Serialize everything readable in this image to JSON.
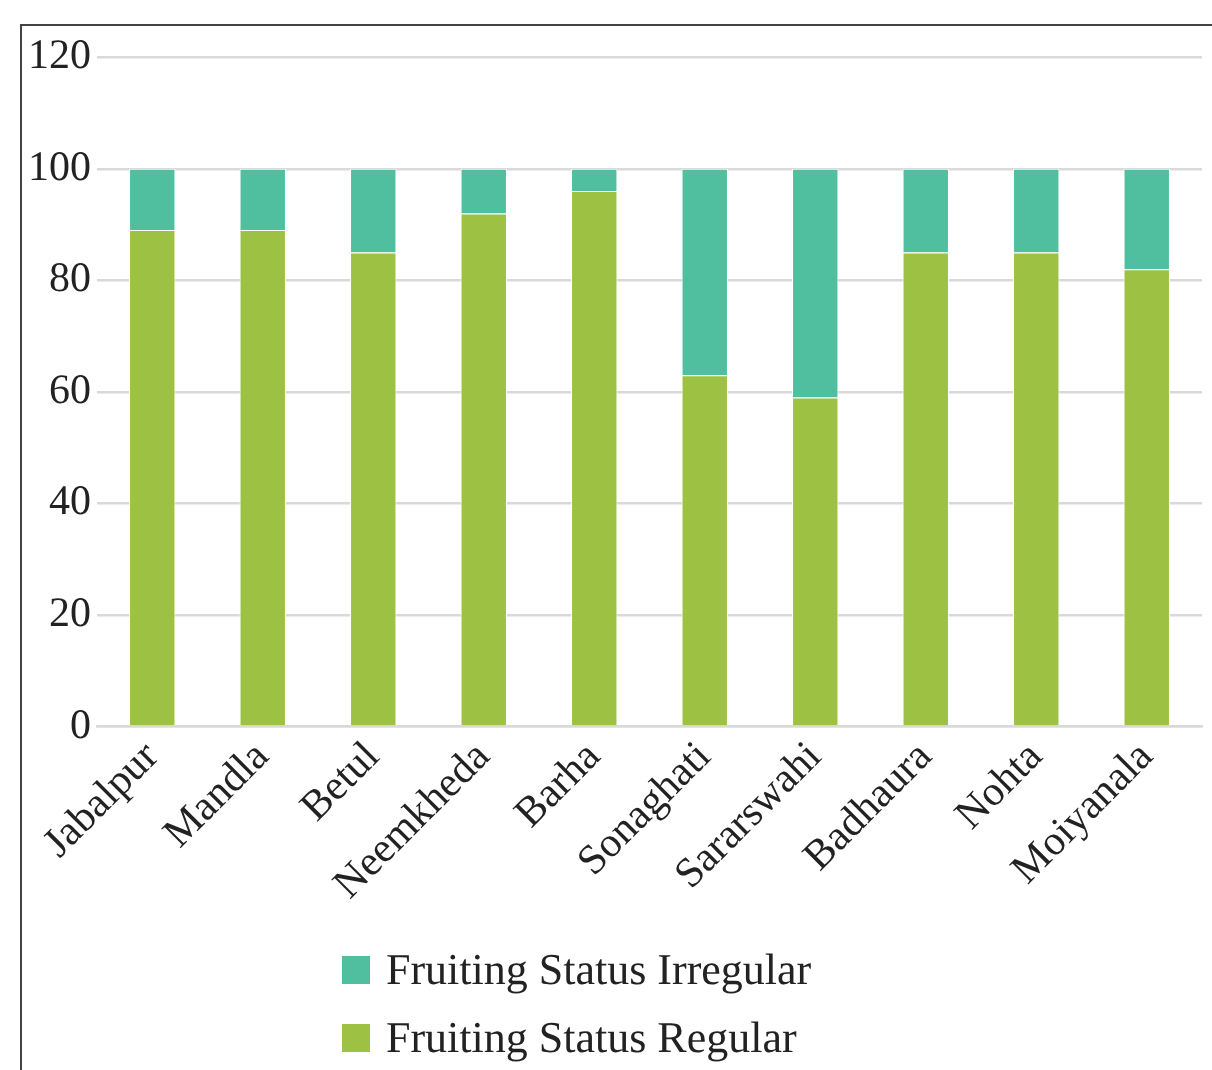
{
  "chart_data": {
    "type": "bar",
    "stacked": true,
    "categories": [
      "Jabalpur",
      "Mandla",
      "Betul",
      "Neemkheda",
      "Barha",
      "Sonaghati",
      "Sararswahi",
      "Badhaura",
      "Nohta",
      "Moiyanala"
    ],
    "series": [
      {
        "name": "Fruiting Status Regular",
        "color": "#9dc243",
        "values": [
          89,
          89,
          85,
          92,
          96,
          63,
          59,
          85,
          85,
          82
        ]
      },
      {
        "name": "Fruiting Status Irregular",
        "color": "#4fbfa0",
        "values": [
          11,
          11,
          15,
          8,
          4,
          37,
          41,
          15,
          15,
          18
        ]
      }
    ],
    "ylim": [
      0,
      120
    ],
    "yticks": [
      0,
      20,
      40,
      60,
      80,
      100,
      120
    ],
    "grid": "y",
    "legend": "bottom"
  }
}
